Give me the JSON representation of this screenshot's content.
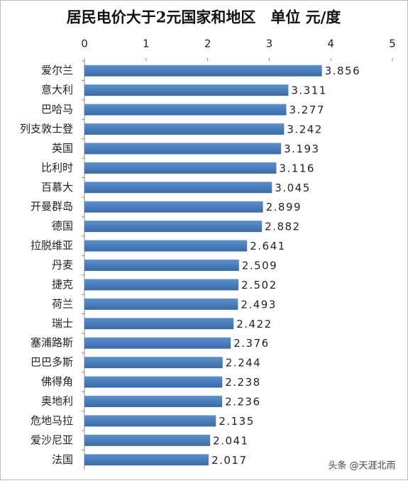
{
  "chart_data": {
    "type": "bar",
    "orientation": "horizontal",
    "title": "居民电价大于2元国家和地区　单位 元/度",
    "annotation": "头条 @天涯北雨",
    "categories": [
      "爱尔兰",
      "意大利",
      "巴哈马",
      "列支敦士登",
      "英国",
      "比利时",
      "百慕大",
      "开曼群岛",
      "德国",
      "拉脱维亚",
      "丹麦",
      "捷克",
      "荷兰",
      "瑞士",
      "塞浦路斯",
      "巴巴多斯",
      "佛得角",
      "奥地利",
      "危地马拉",
      "爱沙尼亚",
      "法国"
    ],
    "values": [
      3.856,
      3.311,
      3.277,
      3.242,
      3.193,
      3.116,
      3.045,
      2.899,
      2.882,
      2.641,
      2.509,
      2.502,
      2.493,
      2.422,
      2.376,
      2.244,
      2.238,
      2.236,
      2.135,
      2.041,
      2.017
    ],
    "color": "#4a7ebb",
    "xlim": [
      0,
      5
    ],
    "xticks": [
      0,
      1,
      2,
      3,
      4,
      5
    ]
  }
}
